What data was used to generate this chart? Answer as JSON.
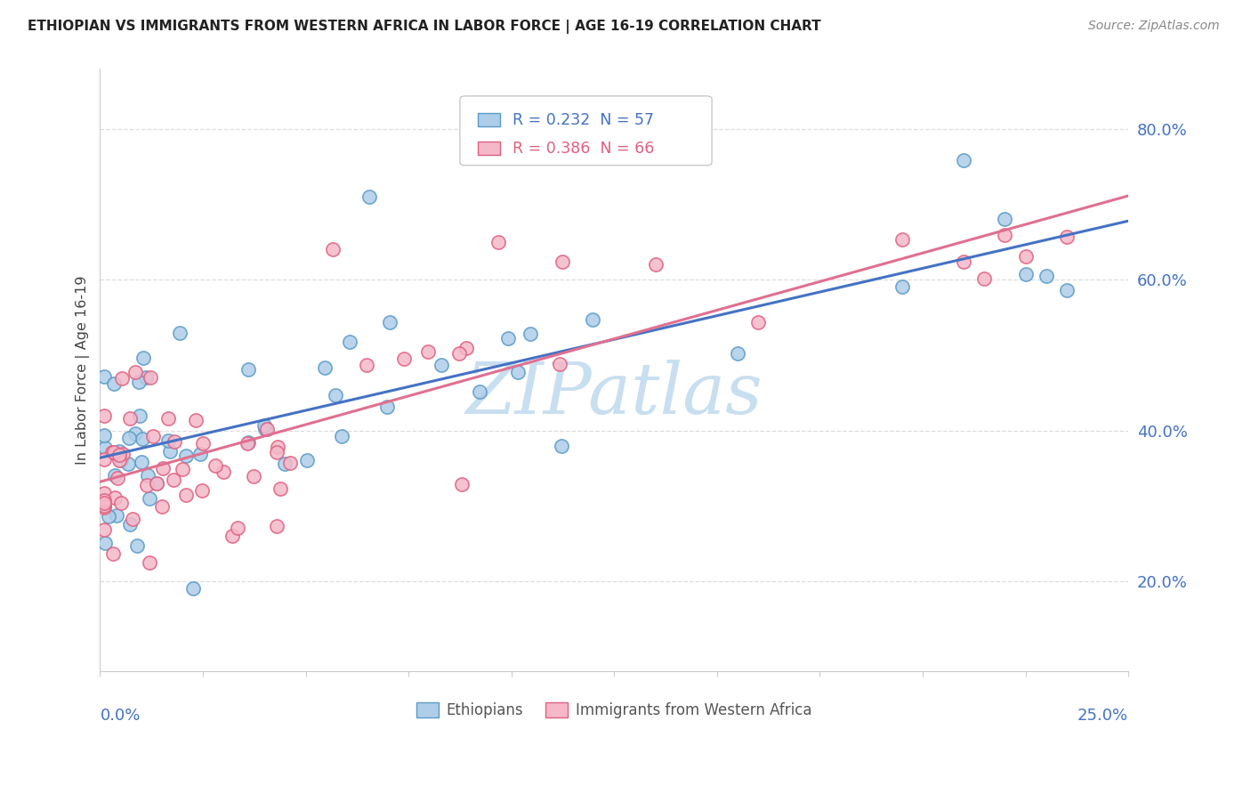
{
  "title": "ETHIOPIAN VS IMMIGRANTS FROM WESTERN AFRICA IN LABOR FORCE | AGE 16-19 CORRELATION CHART",
  "source": "Source: ZipAtlas.com",
  "ylabel": "In Labor Force | Age 16-19",
  "legend_label1": "Ethiopians",
  "legend_label2": "Immigrants from Western Africa",
  "r1": "0.232",
  "n1": "57",
  "r2": "0.386",
  "n2": "66",
  "color1": "#aecde8",
  "color2": "#f4b8c8",
  "edge_color1": "#5b9bc8",
  "edge_color2": "#e06080",
  "line_color1": "#4472c4",
  "line_color2": "#e07090",
  "xlim": [
    0.0,
    0.25
  ],
  "ylim": [
    0.08,
    0.88
  ],
  "yticks": [
    0.2,
    0.4,
    0.6,
    0.8
  ],
  "ytick_labels": [
    "20.0%",
    "40.0%",
    "60.0%",
    "80.0%"
  ],
  "watermark": "ZIPatlas",
  "watermark_color": "#c8dff0",
  "axis_label_color": "#4472c4",
  "title_color": "#222222",
  "source_color": "#888888"
}
